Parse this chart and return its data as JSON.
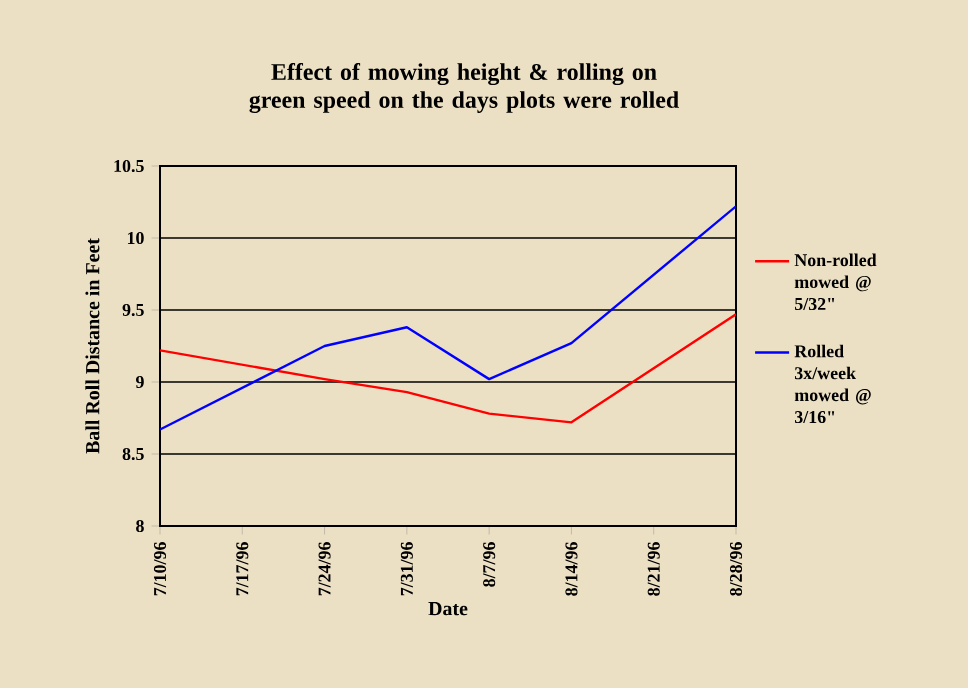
{
  "chart_data": {
    "type": "line",
    "title": "Effect of mowing height & rolling on green speed on the days plots were rolled",
    "xlabel": "Date",
    "ylabel": "Ball Roll Distance in Feet",
    "categories": [
      "7/10/96",
      "7/17/96",
      "7/24/96",
      "7/31/96",
      "8/7/96",
      "8/14/96",
      "8/21/96",
      "8/28/96"
    ],
    "series": [
      {
        "name": "Non-rolled mowed @ 5/32\"",
        "color": "#ff0000",
        "values": [
          9.22,
          null,
          9.02,
          8.93,
          8.78,
          8.72,
          null,
          9.47
        ]
      },
      {
        "name": "Rolled 3x/week mowed @ 3/16\"",
        "color": "#0000ff",
        "values": [
          8.67,
          null,
          9.25,
          9.38,
          9.02,
          9.27,
          null,
          10.22
        ]
      }
    ],
    "ylim": [
      8,
      10.5
    ],
    "yticks": [
      8,
      8.5,
      9,
      9.5,
      10,
      10.5
    ],
    "grid": "y",
    "legend": "right",
    "marker": "none",
    "line_style": "solid"
  }
}
